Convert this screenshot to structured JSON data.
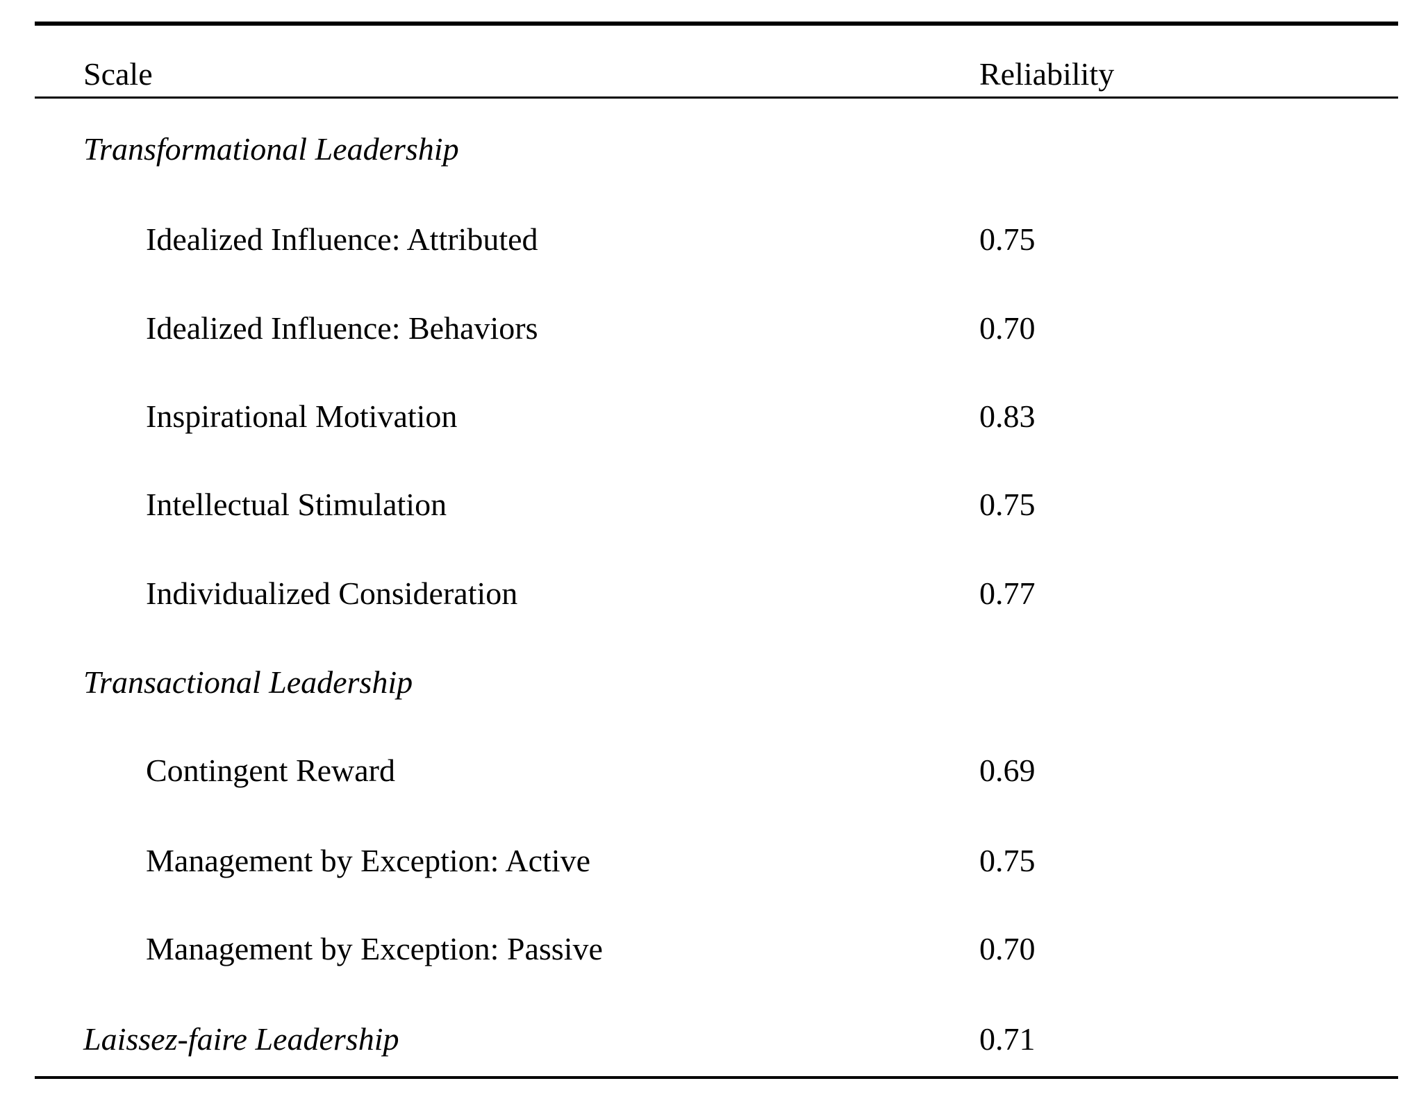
{
  "page": {
    "background_color": "#ffffff",
    "text_color": "#000000"
  },
  "table": {
    "header": {
      "scale": "Scale",
      "reliability": "Reliability"
    },
    "rows": [
      {
        "label": "Transformational Leadership",
        "value": "",
        "kind": "section"
      },
      {
        "label": "Idealized Influence: Attributed",
        "value": "0.75",
        "kind": "item"
      },
      {
        "label": "Idealized Influence: Behaviors",
        "value": "0.70",
        "kind": "item"
      },
      {
        "label": "Inspirational Motivation",
        "value": "0.83",
        "kind": "item"
      },
      {
        "label": "Intellectual Stimulation",
        "value": "0.75",
        "kind": "item"
      },
      {
        "label": "Individualized Consideration",
        "value": "0.77",
        "kind": "item"
      },
      {
        "label": "Transactional Leadership",
        "value": "",
        "kind": "section"
      },
      {
        "label": "Contingent Reward",
        "value": "0.69",
        "kind": "item"
      },
      {
        "label": "Management by Exception: Active",
        "value": "0.75",
        "kind": "item"
      },
      {
        "label": "Management by Exception: Passive",
        "value": "0.70",
        "kind": "item"
      },
      {
        "label": "Laissez-faire Leadership",
        "value": "0.71",
        "kind": "section"
      }
    ]
  }
}
